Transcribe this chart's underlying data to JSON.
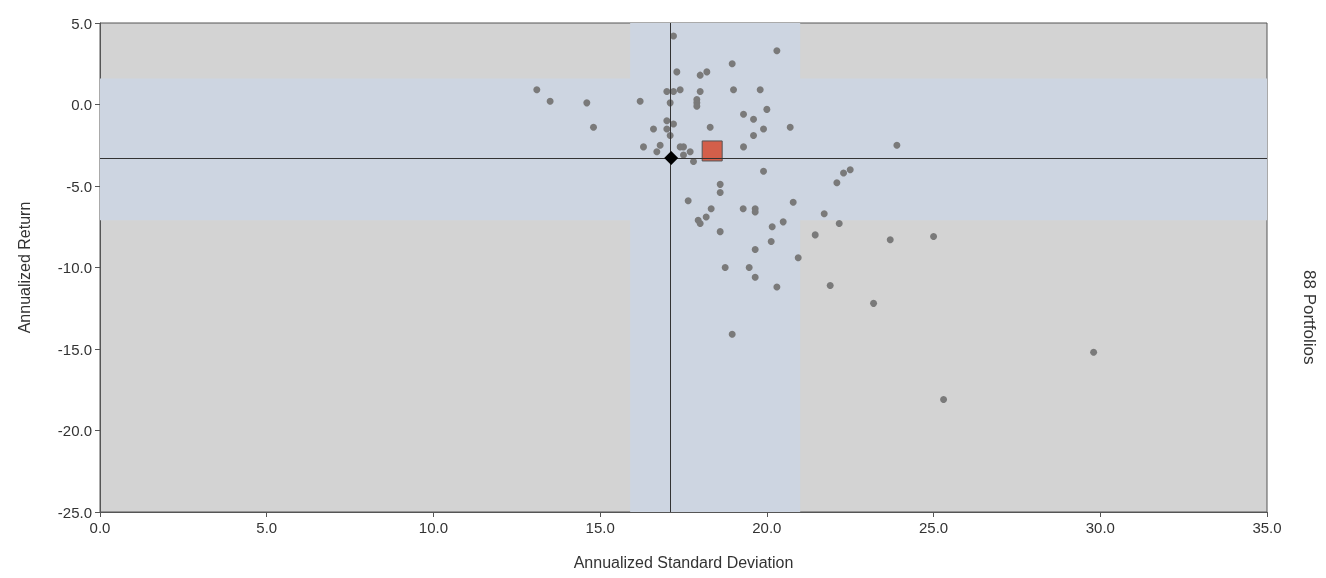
{
  "chart_data": {
    "type": "scatter",
    "xlabel": "Annualized Standard Deviation",
    "ylabel": "Annualized Return",
    "annotations": [
      "88 Portfolios"
    ],
    "xlim": [
      0,
      35
    ],
    "ylim": [
      -25,
      5
    ],
    "xticks": [
      {
        "value": 0,
        "label": "0.0"
      },
      {
        "value": 5,
        "label": "5.0"
      },
      {
        "value": 10,
        "label": "10.0"
      },
      {
        "value": 15,
        "label": "15.0"
      },
      {
        "value": 20,
        "label": "20.0"
      },
      {
        "value": 25,
        "label": "25.0"
      },
      {
        "value": 30,
        "label": "30.0"
      },
      {
        "value": 35,
        "label": "35.0"
      }
    ],
    "yticks": [
      {
        "value": -25,
        "label": "-25.0"
      },
      {
        "value": -20,
        "label": "-20.0"
      },
      {
        "value": -15,
        "label": "-15.0"
      },
      {
        "value": -10,
        "label": "-10.0"
      },
      {
        "value": -5,
        "label": "-5.0"
      },
      {
        "value": 0,
        "label": "0.0"
      },
      {
        "value": 5,
        "label": "5.0"
      }
    ],
    "grid": false,
    "bands": [
      {
        "axis": "x",
        "from": 15.9,
        "to": 21.0,
        "color": "#cdd5e1"
      },
      {
        "axis": "y",
        "from": -7.1,
        "to": 1.6,
        "color": "#cdd5e1"
      }
    ],
    "ref_lines": [
      {
        "axis": "x",
        "value": 17.1,
        "label": null,
        "color": "#333333"
      },
      {
        "axis": "y",
        "value": -3.3,
        "label": null,
        "color": "#333333"
      }
    ],
    "series": [
      {
        "color": "#7a7a7a",
        "marker": "circle",
        "x": [
          17.2,
          20.3,
          18.96,
          17.3,
          18.0,
          18.2,
          13.1,
          13.5,
          14.6,
          14.8,
          16.2,
          17.0,
          17.2,
          17.4,
          17.1,
          18.0,
          17.9,
          17.9,
          17.9,
          19.0,
          19.8,
          19.3,
          19.6,
          20.7,
          19.9,
          19.6,
          19.3,
          17.0,
          17.2,
          17.0,
          17.1,
          16.6,
          16.3,
          16.8,
          16.7,
          17.5,
          17.4,
          17.5,
          17.8,
          19.9,
          22.1,
          22.3,
          22.5,
          23.9,
          18.3,
          17.64,
          18.6,
          18.33,
          18.18,
          17.94,
          18.0,
          18.6,
          19.29,
          19.65,
          19.65,
          20.79,
          21.72,
          22.17,
          20.49,
          20.16,
          21.45,
          23.7,
          25.0,
          20.13,
          19.65,
          20.94,
          18.75,
          19.47,
          19.65,
          20.3,
          21.9,
          23.2,
          18.96,
          29.8,
          25.3,
          18.6,
          20.0,
          17.7
        ],
        "values": [
          4.2,
          3.3,
          2.5,
          2.0,
          1.8,
          2.0,
          0.9,
          0.2,
          0.1,
          -1.4,
          0.2,
          0.8,
          0.8,
          0.9,
          0.1,
          0.8,
          0.3,
          0.1,
          -0.1,
          0.9,
          0.9,
          -0.6,
          -0.9,
          -1.4,
          -1.5,
          -1.9,
          -2.6,
          -1.0,
          -1.2,
          -1.5,
          -1.9,
          -1.5,
          -2.6,
          -2.5,
          -2.9,
          -2.6,
          -2.6,
          -3.1,
          -3.5,
          -4.1,
          -4.8,
          -4.2,
          -4.0,
          -2.5,
          -1.4,
          -5.9,
          -5.4,
          -6.4,
          -6.9,
          -7.1,
          -7.3,
          -7.8,
          -6.4,
          -6.4,
          -6.6,
          -6.0,
          -6.7,
          -7.3,
          -7.2,
          -7.5,
          -8.0,
          -8.3,
          -8.1,
          -8.4,
          -8.9,
          -9.4,
          -10.0,
          -10.0,
          -10.6,
          -11.2,
          -11.1,
          -12.2,
          -14.1,
          -15.2,
          -18.1,
          -4.9,
          -0.3,
          -2.9
        ]
      },
      {
        "color": "#d35f4a",
        "marker": "square",
        "x": [
          18.36
        ],
        "values": [
          -2.85
        ]
      },
      {
        "color": "#000000",
        "marker": "diamond",
        "x": [
          17.13
        ],
        "values": [
          -3.28
        ]
      }
    ]
  }
}
